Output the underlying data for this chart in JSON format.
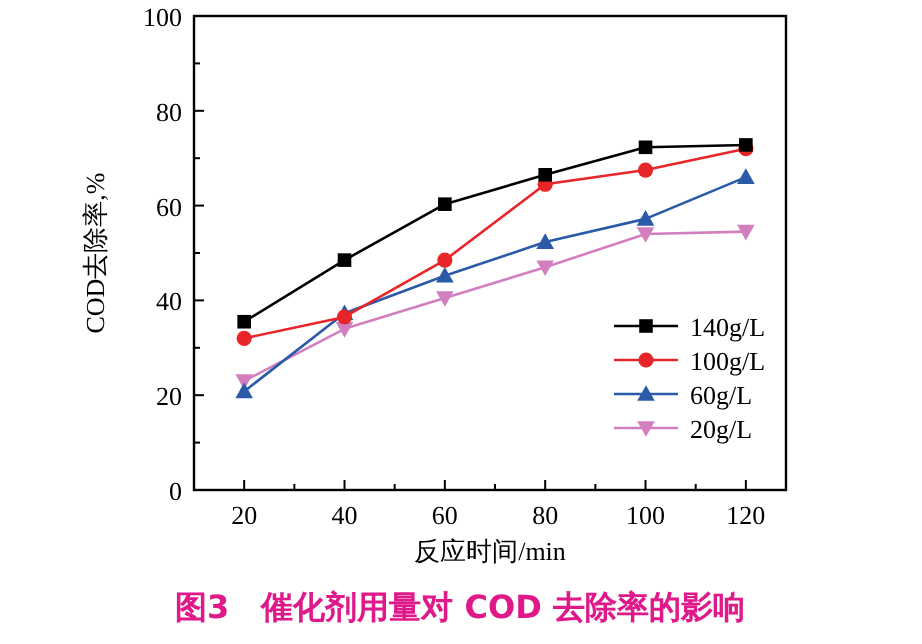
{
  "chart_data": {
    "type": "line",
    "title": "图3　催化剂用量对 COD 去除率的影响",
    "xlabel": "反应时间/min",
    "ylabel": "COD去除率,%",
    "x": [
      20,
      40,
      60,
      80,
      100,
      120
    ],
    "xlim": [
      10,
      128
    ],
    "xticks": [
      20,
      {
        "value": 30,
        "label": null
      },
      40,
      {
        "value": 50,
        "label": null
      },
      60,
      {
        "value": 70,
        "label": null
      },
      80,
      {
        "value": 90,
        "label": null
      },
      100,
      {
        "value": 110,
        "label": null
      },
      120
    ],
    "ylim": [
      0,
      100
    ],
    "yticks": [
      0,
      {
        "value": 10,
        "label": null
      },
      20,
      {
        "value": 30,
        "label": null
      },
      40,
      {
        "value": 50,
        "label": null
      },
      60,
      {
        "value": 70,
        "label": null
      },
      80,
      {
        "value": 90,
        "label": null
      },
      100
    ],
    "legend": "right",
    "series": [
      {
        "name": "140g/L",
        "color": "#000000",
        "marker": "square",
        "values": [
          35.5,
          48.5,
          60.3,
          66.5,
          72.3,
          72.8
        ]
      },
      {
        "name": "100g/L",
        "color": "#e8262a",
        "marker": "circle",
        "values": [
          32,
          36.5,
          48.5,
          64.5,
          67.5,
          72
        ]
      },
      {
        "name": "60g/L",
        "color": "#2a5aa8",
        "marker": "triangle",
        "values": [
          20.8,
          37.3,
          45.2,
          52.3,
          57.2,
          66
        ]
      },
      {
        "name": "20g/L",
        "color": "#d27fc0",
        "marker": "triangle-down",
        "values": [
          23,
          34,
          40.5,
          47,
          54,
          54.5
        ]
      }
    ]
  }
}
